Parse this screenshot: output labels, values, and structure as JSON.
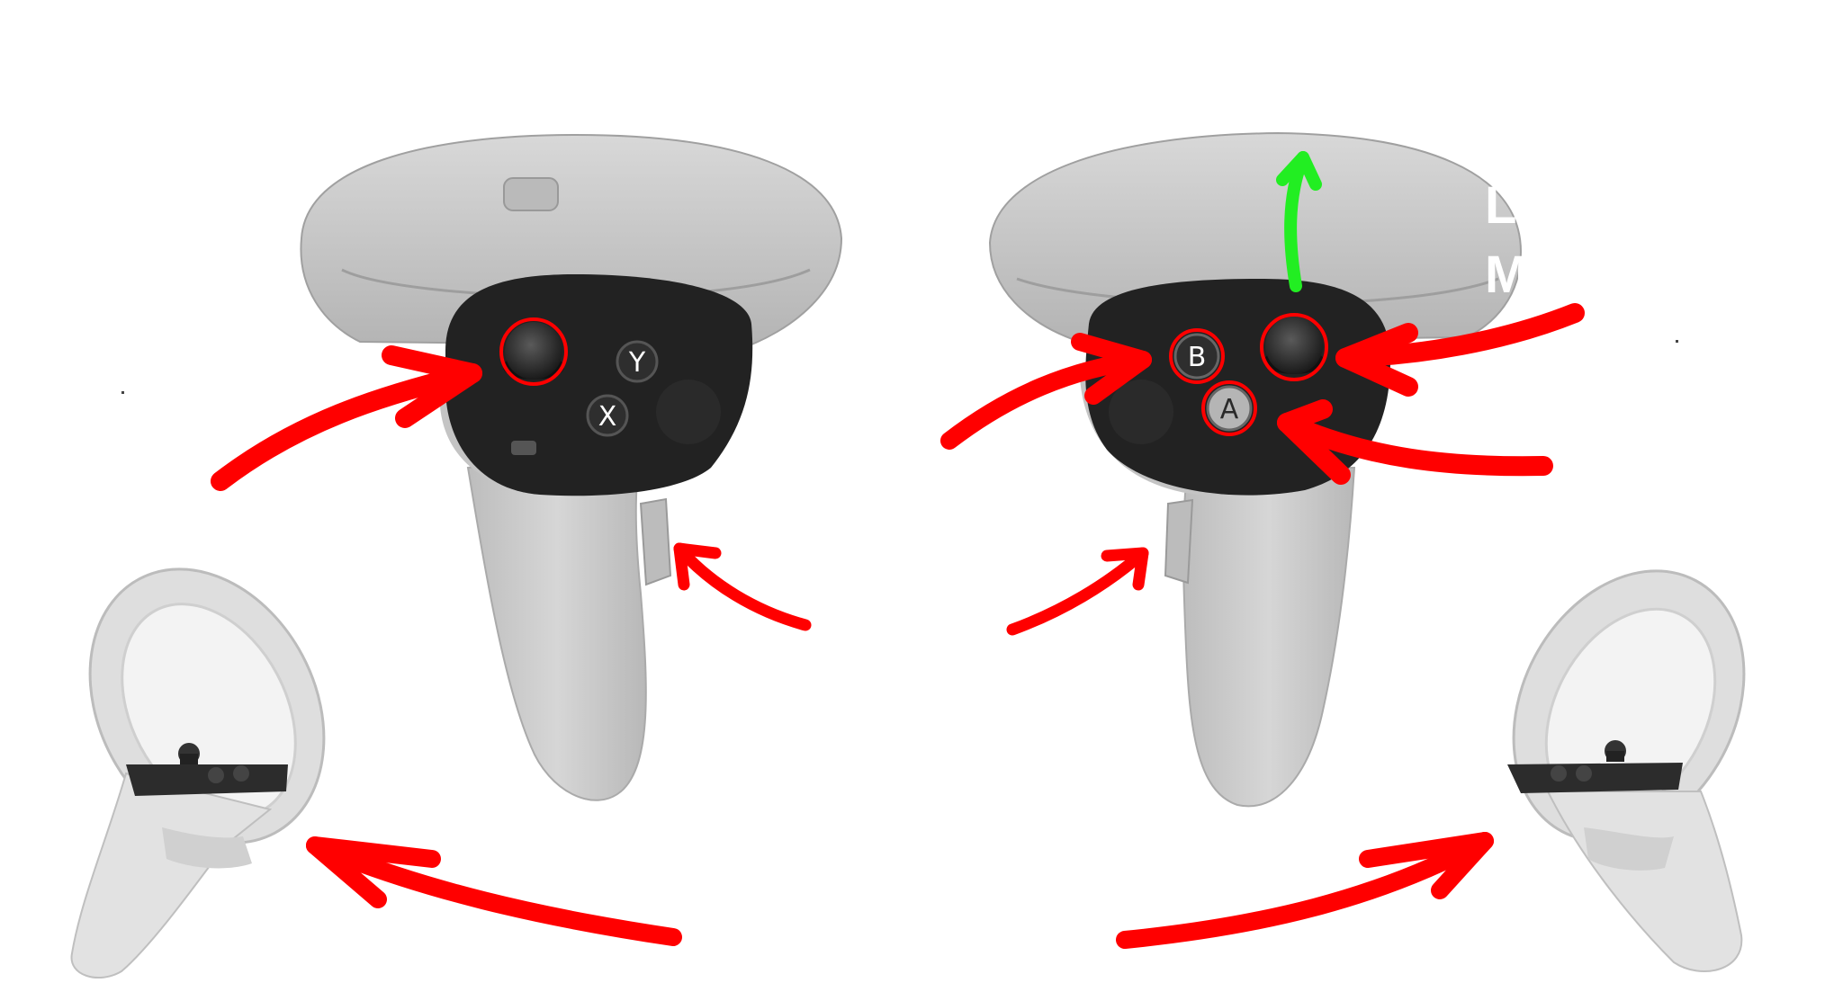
{
  "colors": {
    "background": "#ffffff",
    "controller_body": "#c9c9c9",
    "controller_shade": "#a9a9a9",
    "face_plate": "#222222",
    "annotation_red": "#ff0000",
    "annotation_green": "#22ee22"
  },
  "left_controller": {
    "buttons": {
      "y": "Y",
      "x": "X"
    }
  },
  "right_controller": {
    "buttons": {
      "b": "B",
      "a": "A"
    }
  },
  "partial_text": {
    "line1": "L",
    "line2": "M"
  }
}
